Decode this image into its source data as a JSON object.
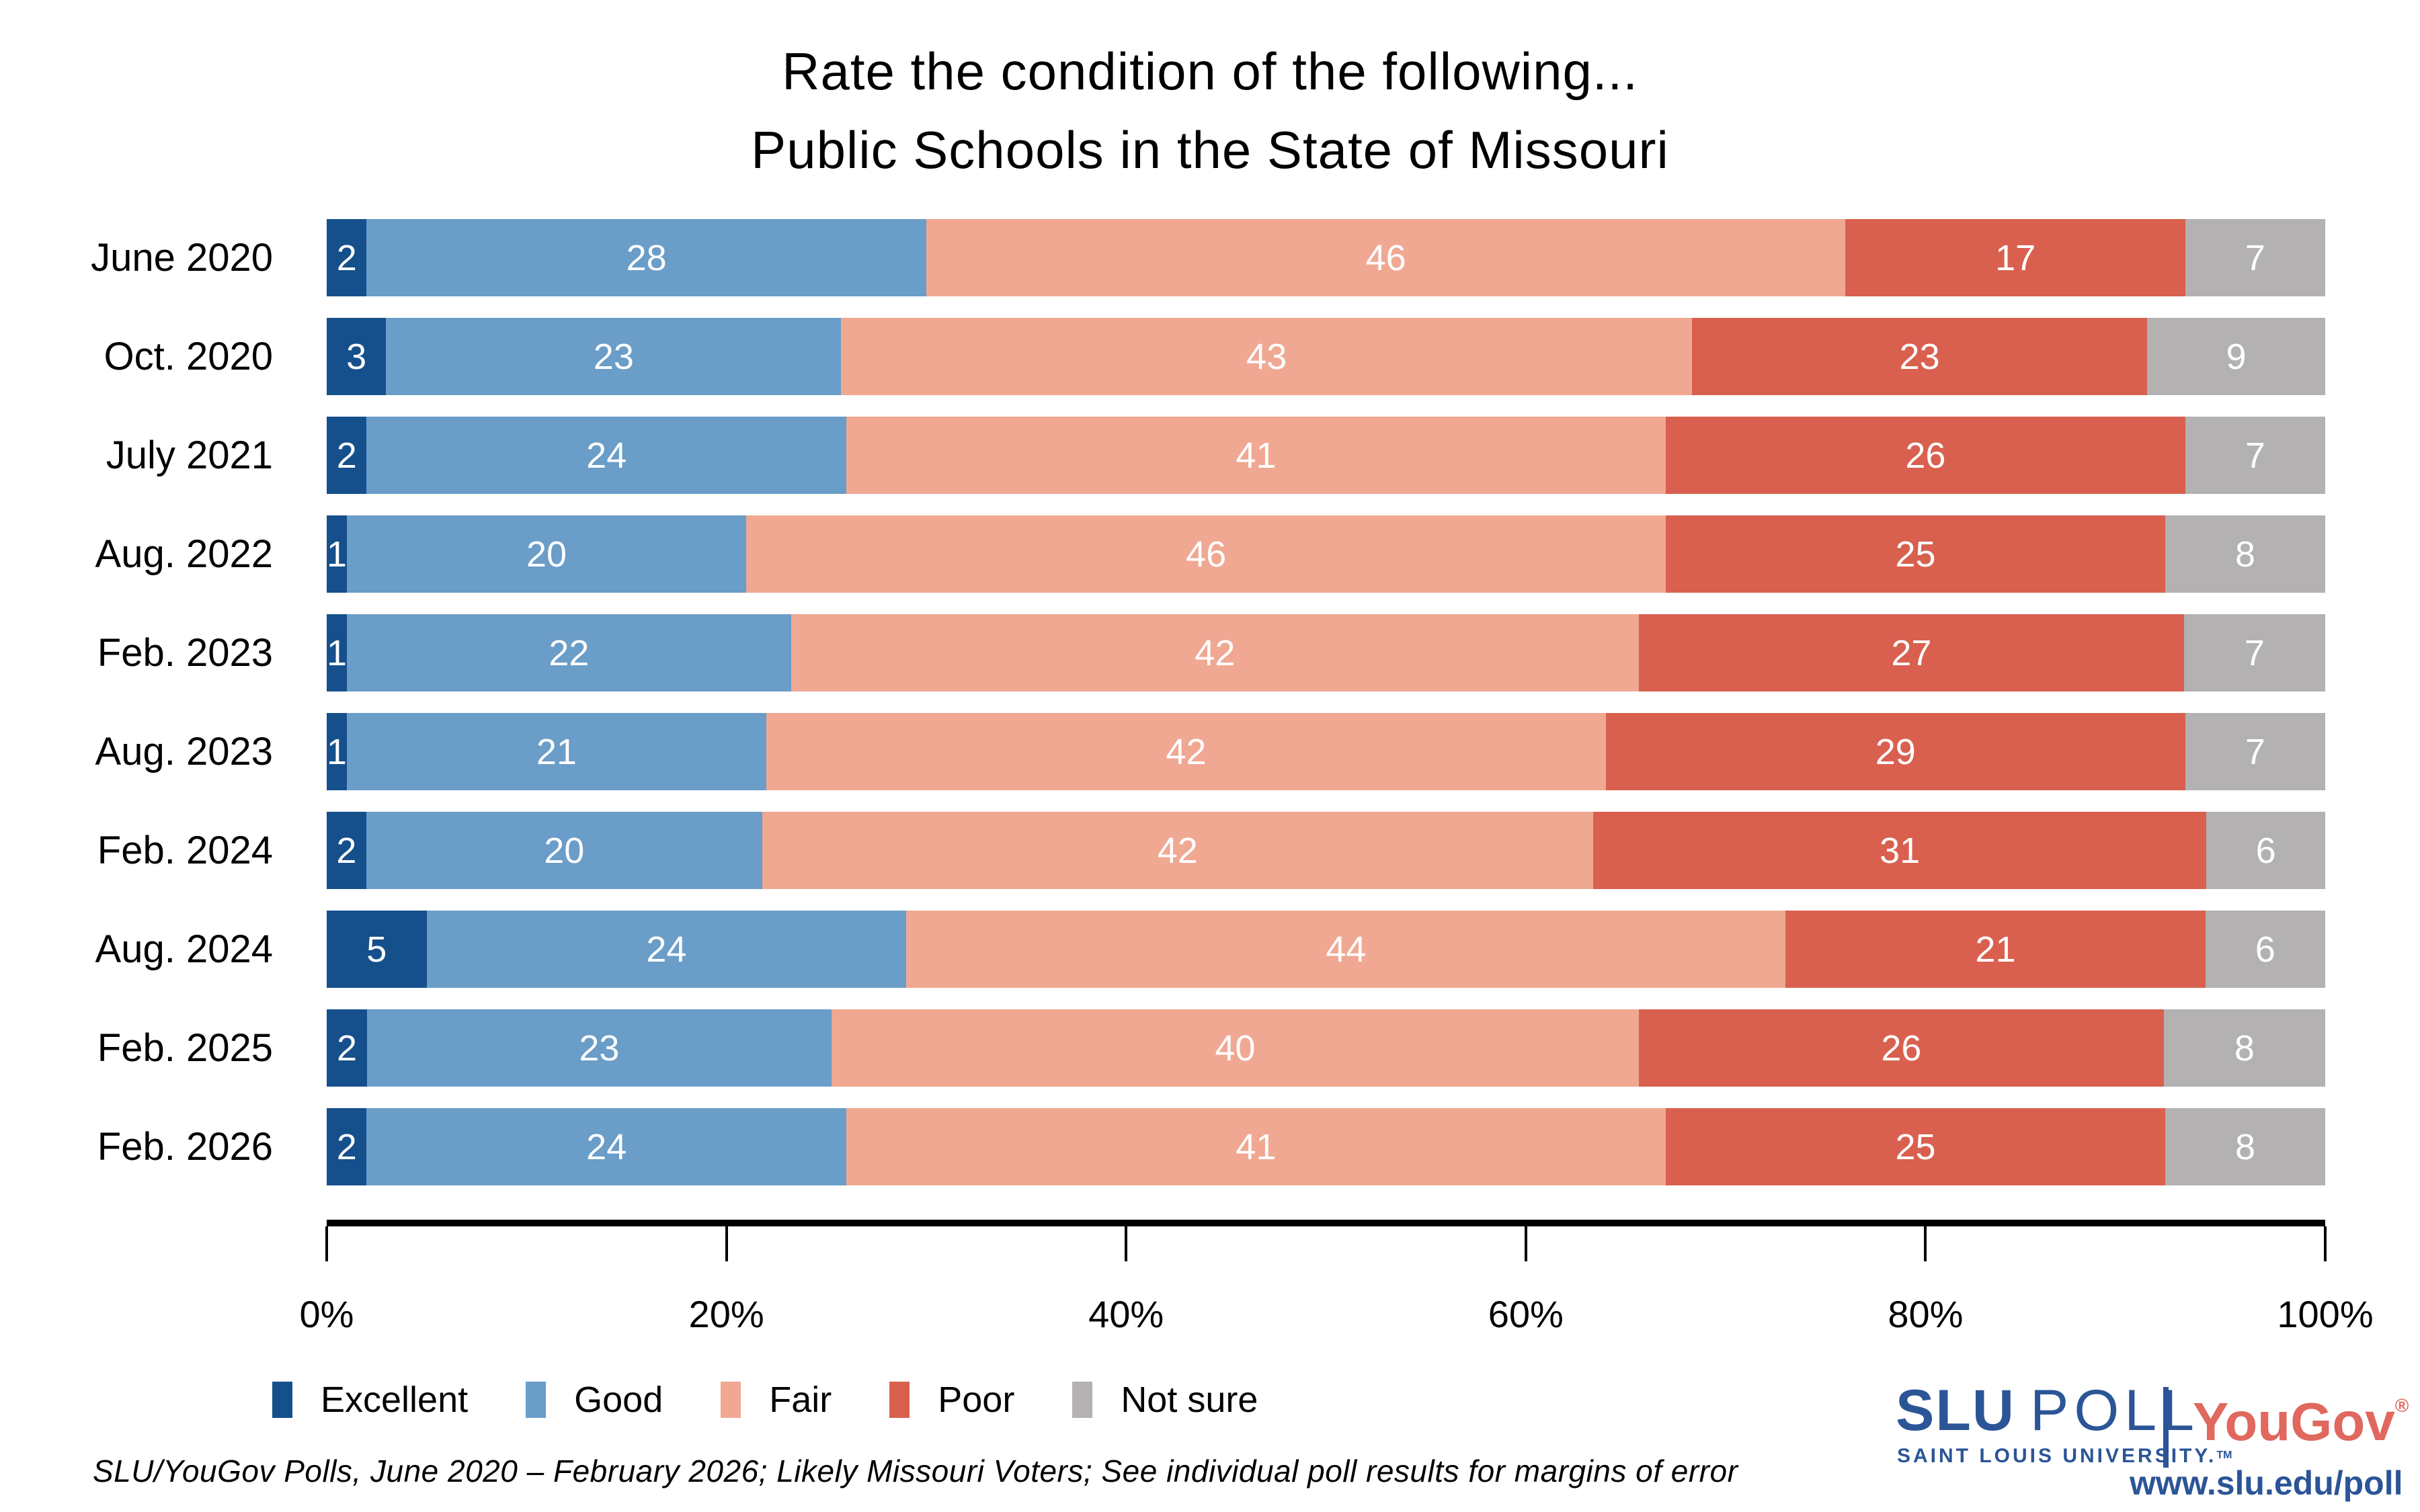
{
  "title": {
    "line1": "Rate the condition of the following...",
    "line2": "Public Schools in the State of Missouri"
  },
  "chart_data": {
    "type": "bar",
    "stacked": true,
    "orientation": "horizontal",
    "title": "Rate the condition of the following... Public Schools in the State of Missouri",
    "categories": [
      "June 2020",
      "Oct. 2020",
      "July 2021",
      "Aug. 2022",
      "Feb. 2023",
      "Aug. 2023",
      "Feb. 2024",
      "Aug. 2024",
      "Feb. 2025",
      "Feb. 2026"
    ],
    "series": [
      {
        "name": "Excellent",
        "color": "#15508C",
        "values": [
          2,
          3,
          2,
          1,
          1,
          1,
          2,
          5,
          2,
          2
        ]
      },
      {
        "name": "Good",
        "color": "#6A9DC8",
        "values": [
          28,
          23,
          24,
          20,
          22,
          21,
          20,
          24,
          23,
          24
        ]
      },
      {
        "name": "Fair",
        "color": "#F0A893",
        "values": [
          46,
          43,
          41,
          46,
          42,
          42,
          42,
          44,
          40,
          41
        ]
      },
      {
        "name": "Poor",
        "color": "#D9604F",
        "values": [
          17,
          23,
          26,
          25,
          27,
          29,
          31,
          21,
          26,
          25
        ]
      },
      {
        "name": "Not sure",
        "color": "#B3B1B1",
        "values": [
          7,
          9,
          7,
          8,
          7,
          7,
          6,
          6,
          8,
          8
        ]
      }
    ],
    "value_labels": "inside, white",
    "xlabel": "",
    "ylabel": "",
    "x_axis": {
      "min": 0,
      "max": 100,
      "ticks": [
        {
          "label": "0%",
          "value": 0
        },
        {
          "label": "20%",
          "value": 20
        },
        {
          "label": "40%",
          "value": 40
        },
        {
          "label": "60%",
          "value": 60
        },
        {
          "label": "80%",
          "value": 80
        },
        {
          "label": "100%",
          "value": 100
        }
      ]
    },
    "legend_position": "bottom",
    "grid": false
  },
  "footer": {
    "note": "SLU/YouGov Polls, June 2020 – February 2026; Likely Missouri Voters; See individual poll results for margins of error"
  },
  "branding": {
    "slu_bold": "SLU",
    "slu_light": "POLL",
    "slu_subtitle": "SAINT LOUIS UNIVERSITY.",
    "slu_trademark": "TM",
    "yougov": "YouGov",
    "yougov_registered": "®",
    "url": "www.slu.edu/poll",
    "slu_blue": "#2B5597",
    "yougov_red": "#E0685E"
  }
}
